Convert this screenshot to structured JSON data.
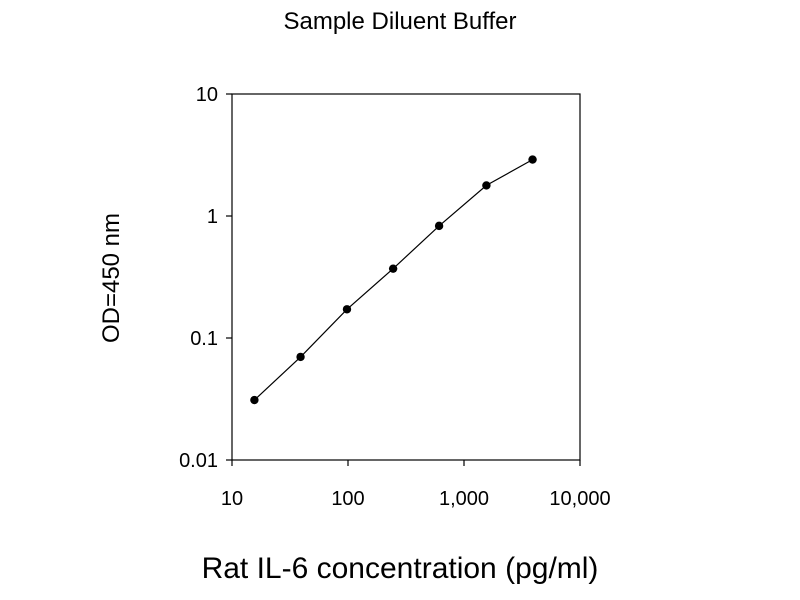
{
  "chart_data": {
    "type": "scatter",
    "title": "Sample Diluent Buffer",
    "xlabel": "Rat IL-6  concentration (pg/ml)",
    "ylabel": "OD=450 nm",
    "x_scale": "log",
    "y_scale": "log",
    "xlim": [
      10,
      10000
    ],
    "ylim": [
      0.01,
      10
    ],
    "x_ticks": [
      10,
      100,
      1000,
      10000
    ],
    "x_tick_labels": [
      "10",
      "100",
      "1,000",
      "10,000"
    ],
    "y_ticks": [
      0.01,
      0.1,
      1,
      10
    ],
    "y_tick_labels": [
      "0.01",
      "0.1",
      "1",
      "10"
    ],
    "grid": false,
    "connect_points": true,
    "series": [
      {
        "x": [
          15.6,
          39,
          98,
          245,
          610,
          1560,
          3900
        ],
        "y": [
          0.031,
          0.07,
          0.172,
          0.37,
          0.83,
          1.78,
          2.9
        ]
      }
    ]
  }
}
